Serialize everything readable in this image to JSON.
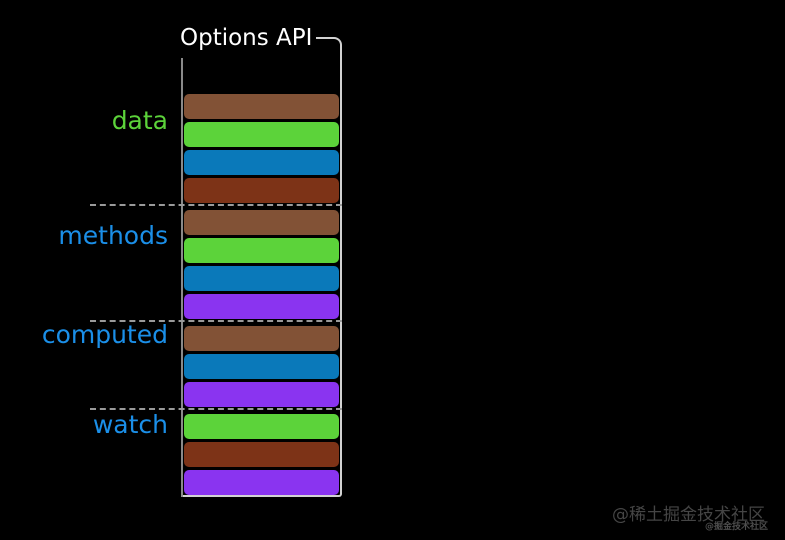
{
  "title": "Options API",
  "watermark": {
    "primary": "@稀土掘金技术社区",
    "secondary": "@掘金技术社区"
  },
  "colors": {
    "background": "#000000",
    "title_text": "#ffffff",
    "label_green": "#5cd33a",
    "label_blue": "#1b8fe8",
    "bar_brown": "#825236",
    "bar_green": "#5cd33a",
    "bar_blue": "#0a79ba",
    "bar_darkred": "#7d3317",
    "bar_purple": "#8a34f0",
    "box_border_light": "#d2d2d2",
    "box_border_dark": "#8a8a8a",
    "separator_gray": "#9a9a9a"
  },
  "diagram": {
    "sections": [
      {
        "label": "data",
        "label_color_key": "label_green",
        "bars": [
          "brown",
          "green",
          "blue",
          "darkred"
        ]
      },
      {
        "label": "methods",
        "label_color_key": "label_blue",
        "bars": [
          "brown",
          "green",
          "blue",
          "purple"
        ]
      },
      {
        "label": "computed",
        "label_color_key": "label_blue",
        "bars": [
          "brown",
          "blue",
          "purple"
        ]
      },
      {
        "label": "watch",
        "label_color_key": "label_blue",
        "bars": [
          "green",
          "darkred",
          "purple"
        ]
      }
    ]
  }
}
